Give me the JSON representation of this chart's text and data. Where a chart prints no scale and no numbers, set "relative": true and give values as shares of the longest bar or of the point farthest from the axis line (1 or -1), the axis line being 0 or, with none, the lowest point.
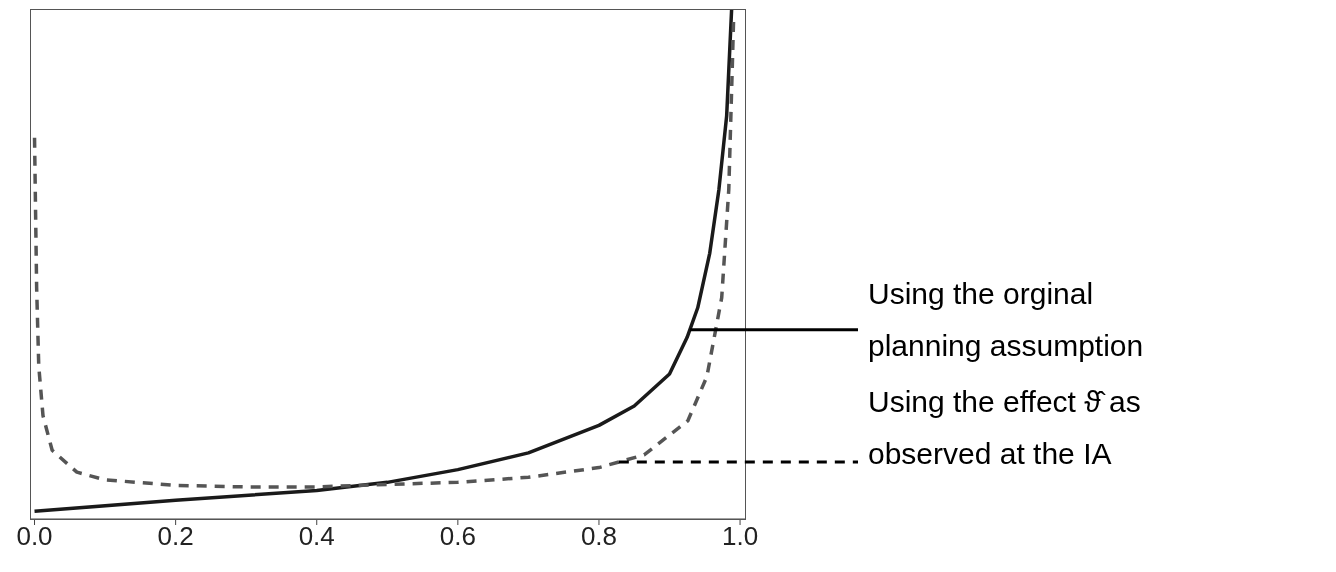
{
  "chart_data": {
    "type": "line",
    "relative": true,
    "xlim": [
      -0.005,
      1.007
    ],
    "xticks": [
      {
        "value": 0,
        "label": "0.0"
      },
      {
        "value": 0.2,
        "label": "0.2"
      },
      {
        "value": 0.4,
        "label": "0.4"
      },
      {
        "value": 0.6,
        "label": "0.6"
      },
      {
        "value": 0.8,
        "label": "0.8"
      },
      {
        "value": 1,
        "label": "1.0"
      }
    ],
    "marker": "none",
    "series": [
      {
        "name": "Using the orginal planning assumption",
        "color": "#1a1a1a",
        "line_style": "solid",
        "x": [
          0,
          0.2,
          0.4,
          0.5,
          0.6,
          0.7,
          0.8,
          0.85,
          0.9,
          0.925,
          0.94,
          0.957,
          0.97,
          0.981,
          0.988
        ],
        "values": [
          0.015,
          0.037,
          0.056,
          0.072,
          0.097,
          0.13,
          0.184,
          0.222,
          0.285,
          0.357,
          0.415,
          0.522,
          0.647,
          0.792,
          1.0
        ]
      },
      {
        "name": "Using the effect ϑ̂ as observed at the IA",
        "color": "#555555",
        "line_style": "dashed",
        "x": [
          0,
          0.003,
          0.006,
          0.012,
          0.025,
          0.06,
          0.1,
          0.2,
          0.3,
          0.4,
          0.5,
          0.6,
          0.7,
          0.8,
          0.864,
          0.926,
          0.953,
          0.974,
          0.984,
          0.989,
          0.991
        ],
        "values": [
          0.749,
          0.454,
          0.3,
          0.203,
          0.135,
          0.092,
          0.077,
          0.066,
          0.063,
          0.063,
          0.068,
          0.072,
          0.082,
          0.101,
          0.126,
          0.193,
          0.28,
          0.435,
          0.647,
          0.889,
          0.99
        ]
      }
    ]
  }
}
